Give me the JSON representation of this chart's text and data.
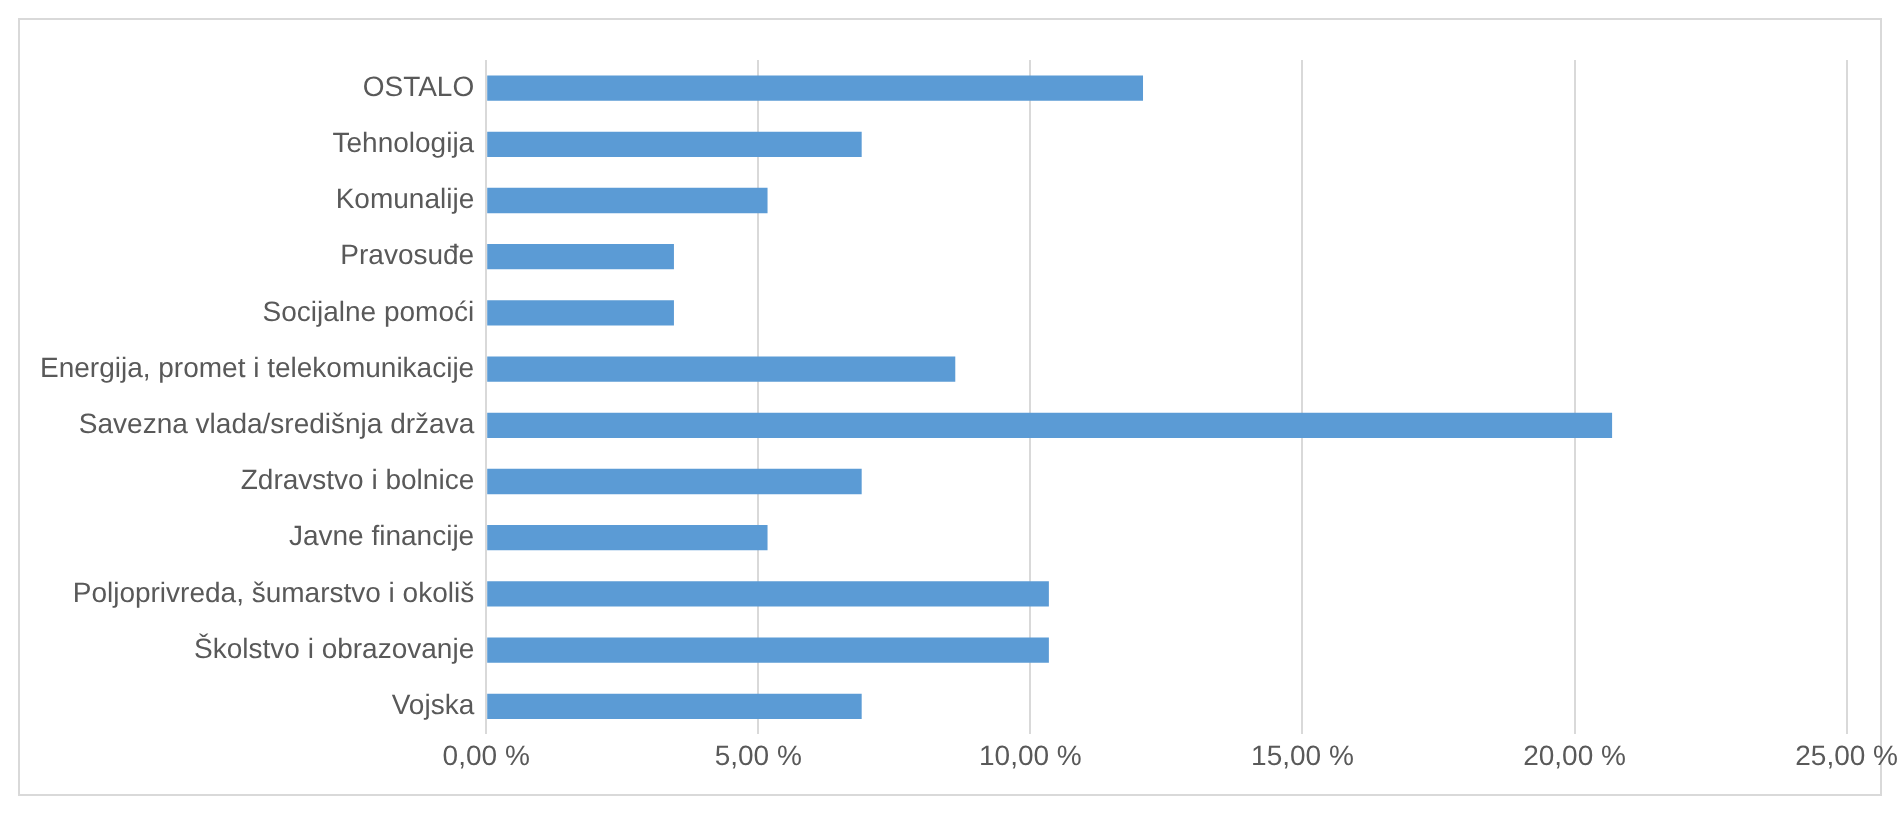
{
  "chart_data": {
    "type": "bar",
    "orientation": "horizontal",
    "categories": [
      "OSTALO",
      "Tehnologija",
      "Komunalije",
      "Pravosuđe",
      "Socijalne pomoći",
      "Energija, promet i telekomunikacije",
      "Savezna vlada/središnja država",
      "Zdravstvo i bolnice",
      "Javne financije",
      "Poljoprivreda, šumarstvo i okoliš",
      "Školstvo i obrazovanje",
      "Vojska"
    ],
    "values": [
      12.07,
      6.9,
      5.17,
      3.45,
      3.45,
      8.62,
      20.69,
      6.9,
      5.17,
      10.34,
      10.34,
      6.9
    ],
    "color": "#5b9bd5",
    "xlim": [
      0,
      25
    ],
    "xticks": [
      {
        "value": 0,
        "label": "0,00 %"
      },
      {
        "value": 5,
        "label": "5,00 %"
      },
      {
        "value": 10,
        "label": "10,00 %"
      },
      {
        "value": 15,
        "label": "15,00 %"
      },
      {
        "value": 20,
        "label": "20,00 %"
      },
      {
        "value": 25,
        "label": "25,00 %"
      }
    ],
    "grid": "x",
    "legend": false
  }
}
